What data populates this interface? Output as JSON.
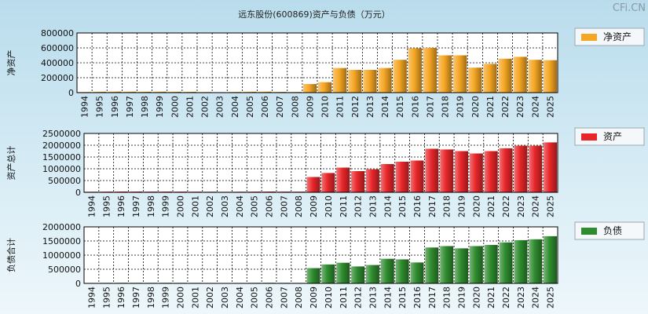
{
  "title": "远东股份(600869)资产与负债（万元）",
  "watermark": "CFi.CN",
  "chart_data": [
    {
      "type": "bar",
      "ylabel": "净资产",
      "legend": "净资产",
      "color": "#f5a623",
      "ylim": [
        0,
        800000
      ],
      "yticks": [
        "0",
        "200000",
        "400000",
        "600000",
        "800000"
      ],
      "categories": [
        "1994",
        "1995",
        "1996",
        "1997",
        "1998",
        "1999",
        "2000",
        "2001",
        "2002",
        "2003",
        "2004",
        "2005",
        "2006",
        "2007",
        "2008",
        "2009",
        "2010",
        "2011",
        "2012",
        "2013",
        "2014",
        "2015",
        "2016",
        "2017",
        "2018",
        "2019",
        "2020",
        "2021",
        "2022",
        "2023",
        "2024",
        "2025"
      ],
      "values": [
        8000,
        12000,
        14000,
        13000,
        12000,
        13000,
        12000,
        11000,
        8000,
        6000,
        9000,
        12000,
        13000,
        10000,
        9000,
        115000,
        140000,
        330000,
        305000,
        305000,
        330000,
        440000,
        595000,
        600000,
        500000,
        500000,
        335000,
        385000,
        455000,
        480000,
        440000,
        435000
      ]
    },
    {
      "type": "bar",
      "ylabel": "资产总计",
      "legend": "资产",
      "color": "#e8262a",
      "ylim": [
        0,
        2500000
      ],
      "yticks": [
        "0",
        "500000",
        "1000000",
        "1500000",
        "2000000",
        "2500000"
      ],
      "categories": [
        "1994",
        "1995",
        "1996",
        "1997",
        "1998",
        "1999",
        "2000",
        "2001",
        "2002",
        "2003",
        "2004",
        "2005",
        "2006",
        "2007",
        "2008",
        "2009",
        "2010",
        "2011",
        "2012",
        "2013",
        "2014",
        "2015",
        "2016",
        "2017",
        "2018",
        "2019",
        "2020",
        "2021",
        "2022",
        "2023",
        "2024",
        "2025"
      ],
      "values": [
        25000,
        30000,
        35000,
        33000,
        30000,
        32000,
        30000,
        28000,
        25000,
        22000,
        25000,
        30000,
        33000,
        30000,
        28000,
        650000,
        820000,
        1050000,
        900000,
        980000,
        1200000,
        1300000,
        1350000,
        1850000,
        1820000,
        1750000,
        1650000,
        1750000,
        1870000,
        1980000,
        1980000,
        2120000
      ]
    },
    {
      "type": "bar",
      "ylabel": "负债合计",
      "legend": "负债",
      "color": "#2e8b2e",
      "ylim": [
        0,
        2000000
      ],
      "yticks": [
        "0",
        "500000",
        "1000000",
        "1500000",
        "2000000"
      ],
      "categories": [
        "1994",
        "1995",
        "1996",
        "1997",
        "1998",
        "1999",
        "2000",
        "2001",
        "2002",
        "2003",
        "2004",
        "2005",
        "2006",
        "2007",
        "2008",
        "2009",
        "2010",
        "2011",
        "2012",
        "2013",
        "2014",
        "2015",
        "2016",
        "2017",
        "2018",
        "2019",
        "2020",
        "2021",
        "2022",
        "2023",
        "2024",
        "2025"
      ],
      "values": [
        15000,
        18000,
        20000,
        19000,
        18000,
        19000,
        18000,
        17000,
        15000,
        14000,
        15000,
        18000,
        20000,
        18000,
        17000,
        540000,
        670000,
        730000,
        600000,
        650000,
        870000,
        850000,
        740000,
        1270000,
        1320000,
        1240000,
        1320000,
        1360000,
        1450000,
        1530000,
        1560000,
        1670000
      ]
    }
  ]
}
